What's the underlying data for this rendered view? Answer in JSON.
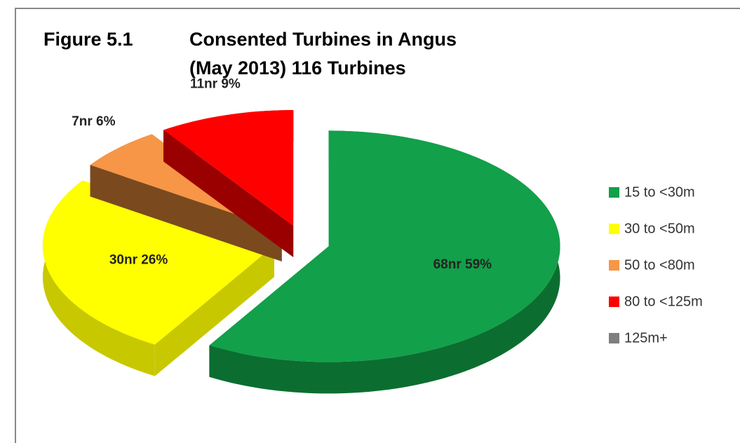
{
  "chart_data": {
    "type": "pie3d",
    "figure": "Figure 5.1",
    "title": [
      "Consented Turbines in Angus",
      "(May 2013) 116 Turbines"
    ],
    "categories": [
      "15 to <30m",
      "30 to <50m",
      "50 to <80m",
      "80 to <125m",
      "125m+"
    ],
    "values": [
      68,
      30,
      7,
      11,
      0
    ],
    "value_labels": [
      "68nr 59%",
      "30nr 26%",
      "7nr 6%",
      "11nr 9%",
      null
    ],
    "colors": [
      "#12a04a",
      "#ffff00",
      "#f79646",
      "#ff0000",
      "#7f7f7f"
    ],
    "side_colors": [
      "#0b6e30",
      "#c8c800",
      "#7a4a1e",
      "#9a0000",
      "#555555"
    ],
    "legend": "right"
  }
}
